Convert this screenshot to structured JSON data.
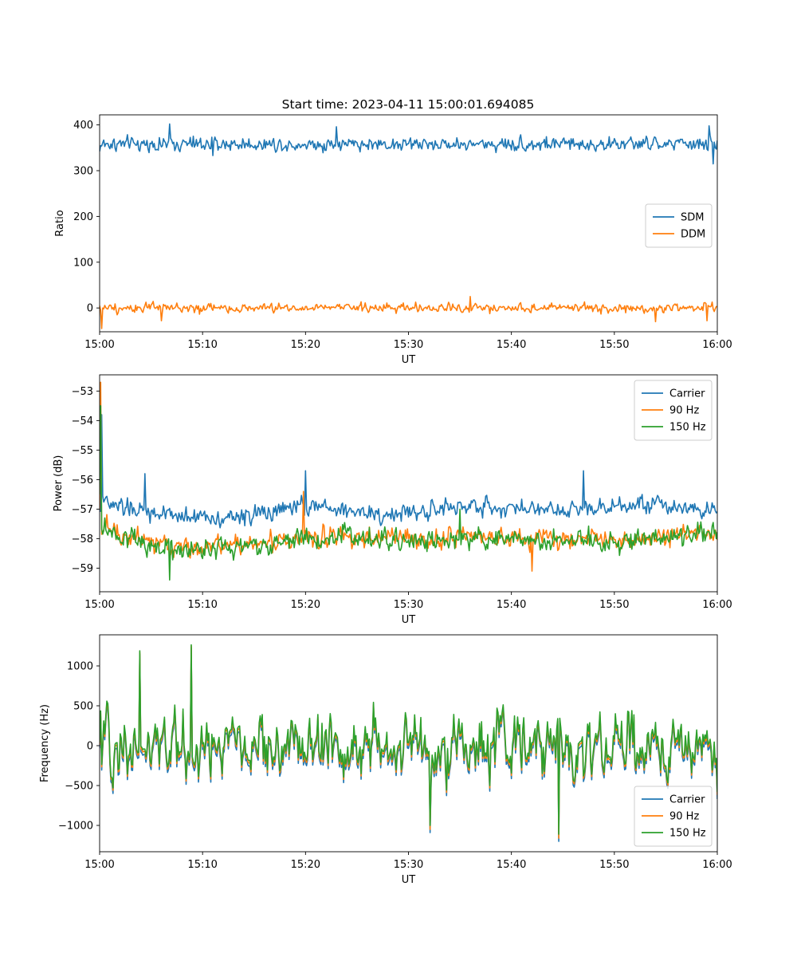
{
  "figure": {
    "title": "Start time: 2023-04-11 15:00:01.694085"
  },
  "chart_data": [
    {
      "type": "line",
      "id": "ratio",
      "title": "Start time: 2023-04-11 15:00:01.694085",
      "xlabel": "UT",
      "ylabel": "Ratio",
      "xlim": [
        "15:00",
        "16:00"
      ],
      "ylim": [
        -52,
        422
      ],
      "x_ticks": [
        "15:00",
        "15:10",
        "15:20",
        "15:30",
        "15:40",
        "15:50",
        "16:00"
      ],
      "y_ticks": [
        0,
        100,
        200,
        300,
        400
      ],
      "y_tick_labels": [
        "0",
        "100",
        "200",
        "300",
        "400"
      ],
      "legend": {
        "placement": "center-right",
        "entries": [
          "SDM",
          "DDM"
        ]
      },
      "grid": false,
      "series": [
        {
          "name": "SDM",
          "color": "#1f77b4",
          "mean": 358,
          "noise": 14,
          "trend": [],
          "points": [
            [
              "15:00",
              342
            ],
            [
              "15:06.8",
              402
            ],
            [
              "15:11",
              333
            ],
            [
              "15:23",
              396
            ],
            [
              "15:59.2",
              398
            ],
            [
              "15:59.6",
              315
            ],
            [
              "16:00",
              366
            ]
          ]
        },
        {
          "name": "DDM",
          "color": "#ff7f0e",
          "mean": 0,
          "noise": 9,
          "trend": [],
          "points": [
            [
              "15:00",
              5
            ],
            [
              "15:00.2",
              -45
            ],
            [
              "15:06",
              -28
            ],
            [
              "15:36",
              25
            ],
            [
              "15:54",
              -30
            ],
            [
              "15:59",
              -28
            ],
            [
              "16:00",
              3
            ]
          ]
        }
      ]
    },
    {
      "type": "line",
      "id": "power",
      "title": "",
      "xlabel": "UT",
      "ylabel": "Power (dB)",
      "xlim": [
        "15:00",
        "16:00"
      ],
      "ylim": [
        -59.8,
        -52.45
      ],
      "x_ticks": [
        "15:00",
        "15:10",
        "15:20",
        "15:30",
        "15:40",
        "15:50",
        "16:00"
      ],
      "y_ticks": [
        -59,
        -58,
        -57,
        -56,
        -55,
        -54,
        -53
      ],
      "y_tick_labels": [
        "−59",
        "−58",
        "−57",
        "−56",
        "−55",
        "−54",
        "−53"
      ],
      "legend": {
        "placement": "top-right",
        "entries": [
          "Carrier",
          "90 Hz",
          "150 Hz"
        ]
      },
      "grid": false,
      "series": [
        {
          "name": "Carrier",
          "color": "#1f77b4",
          "mean": -57.0,
          "noise": 0.28,
          "trend": [
            [
              "15:00",
              -56.8
            ],
            [
              "15:06",
              -57.2
            ],
            [
              "15:13",
              -57.3
            ],
            [
              "15:20",
              -56.9
            ],
            [
              "15:28",
              -57.2
            ],
            [
              "15:36",
              -56.9
            ],
            [
              "15:45",
              -57.0
            ],
            [
              "15:52",
              -56.8
            ],
            [
              "16:00",
              -57.0
            ]
          ],
          "points": [
            [
              "15:00",
              -56.0
            ],
            [
              "15:00.2",
              -53.8
            ],
            [
              "15:00.6",
              -56.6
            ],
            [
              "15:04.4",
              -55.8
            ],
            [
              "15:20",
              -55.7
            ],
            [
              "15:47",
              -55.7
            ]
          ]
        },
        {
          "name": "90 Hz",
          "color": "#ff7f0e",
          "mean": -58.0,
          "noise": 0.32,
          "trend": [
            [
              "15:00",
              -57.6
            ],
            [
              "15:07",
              -58.3
            ],
            [
              "15:14",
              -58.2
            ],
            [
              "15:22",
              -57.9
            ],
            [
              "15:30",
              -58.0
            ],
            [
              "15:40",
              -58.0
            ],
            [
              "15:50",
              -58.0
            ],
            [
              "16:00",
              -57.8
            ]
          ],
          "points": [
            [
              "15:00",
              -57.0
            ],
            [
              "15:00.1",
              -52.7
            ],
            [
              "15:00.5",
              -57.4
            ],
            [
              "15:19.8",
              -56.4
            ],
            [
              "15:42",
              -59.1
            ]
          ]
        },
        {
          "name": "150 Hz",
          "color": "#2ca02c",
          "mean": -58.0,
          "noise": 0.33,
          "trend": [
            [
              "15:00",
              -57.6
            ],
            [
              "15:07",
              -58.4
            ],
            [
              "15:14",
              -58.3
            ],
            [
              "15:22",
              -57.9
            ],
            [
              "15:30",
              -58.1
            ],
            [
              "15:40",
              -58.0
            ],
            [
              "15:50",
              -58.1
            ],
            [
              "16:00",
              -57.8
            ]
          ],
          "points": [
            [
              "15:00",
              -56.5
            ],
            [
              "15:00.1",
              -53.5
            ],
            [
              "15:00.5",
              -57.3
            ],
            [
              "15:06.8",
              -59.4
            ],
            [
              "15:35",
              -57.0
            ]
          ]
        }
      ]
    },
    {
      "type": "line",
      "id": "frequency",
      "title": "",
      "xlabel": "UT",
      "ylabel": "Frequency (Hz)",
      "xlim": [
        "15:00",
        "16:00"
      ],
      "ylim": [
        -1330,
        1390
      ],
      "x_ticks": [
        "15:00",
        "15:10",
        "15:20",
        "15:30",
        "15:40",
        "15:50",
        "16:00"
      ],
      "y_ticks": [
        -1000,
        -500,
        0,
        500,
        1000
      ],
      "y_tick_labels": [
        "−1000",
        "−500",
        "0",
        "500",
        "1000"
      ],
      "legend": {
        "placement": "bottom-right",
        "entries": [
          "Carrier",
          "90 Hz",
          "150 Hz"
        ]
      },
      "grid": false,
      "series": [
        {
          "name": "Carrier",
          "color": "#1f77b4",
          "mean": -70,
          "noise": 330,
          "trend": [],
          "points": [
            [
              "15:03.9",
              1150
            ],
            [
              "15:08.9",
              1230
            ],
            [
              "15:32.1",
              -1090
            ],
            [
              "15:44.6",
              -1200
            ],
            [
              "16:00",
              -670
            ]
          ]
        },
        {
          "name": "90 Hz",
          "color": "#ff7f0e",
          "mean": -30,
          "noise": 330,
          "trend": [],
          "points": [
            [
              "15:03.9",
              1170
            ],
            [
              "15:08.9",
              1250
            ],
            [
              "15:32.1",
              -1050
            ],
            [
              "15:44.6",
              -1160
            ],
            [
              "16:00",
              -620
            ]
          ]
        },
        {
          "name": "150 Hz",
          "color": "#2ca02c",
          "mean": 0,
          "noise": 330,
          "trend": [],
          "points": [
            [
              "15:03.9",
              1190
            ],
            [
              "15:08.9",
              1265
            ],
            [
              "15:32.1",
              -1000
            ],
            [
              "15:44.6",
              -1110
            ],
            [
              "16:00",
              -580
            ]
          ]
        }
      ]
    }
  ]
}
